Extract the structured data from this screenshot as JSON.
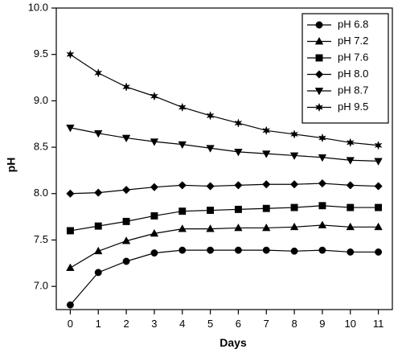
{
  "chart_data": {
    "type": "line",
    "xlabel": "Days",
    "ylabel": "pH",
    "x": [
      0,
      1,
      2,
      3,
      4,
      5,
      6,
      7,
      8,
      9,
      10,
      11
    ],
    "xlim": [
      -0.5,
      11.5
    ],
    "ylim": [
      6.75,
      10.0
    ],
    "x_ticks": [
      "0",
      "1",
      "2",
      "3",
      "4",
      "5",
      "6",
      "7",
      "8",
      "9",
      "10",
      "11"
    ],
    "y_ticks": [
      "7.0",
      "7.5",
      "8.0",
      "8.5",
      "9.0",
      "9.5",
      "10.0"
    ],
    "y_tick_values": [
      7.0,
      7.5,
      8.0,
      8.5,
      9.0,
      9.5,
      10.0
    ],
    "grid": false,
    "legend_position": "top-right",
    "series": [
      {
        "name": "pH 6.8",
        "marker": "circle",
        "values": [
          6.8,
          7.15,
          7.27,
          7.36,
          7.39,
          7.39,
          7.39,
          7.39,
          7.38,
          7.39,
          7.37,
          7.37
        ]
      },
      {
        "name": "pH 7.2",
        "marker": "triangle-up",
        "values": [
          7.2,
          7.38,
          7.49,
          7.57,
          7.62,
          7.62,
          7.63,
          7.63,
          7.64,
          7.66,
          7.64,
          7.64
        ]
      },
      {
        "name": "pH 7.6",
        "marker": "square",
        "values": [
          7.6,
          7.65,
          7.7,
          7.76,
          7.81,
          7.82,
          7.83,
          7.84,
          7.85,
          7.87,
          7.85,
          7.85
        ]
      },
      {
        "name": "pH 8.0",
        "marker": "diamond",
        "values": [
          8.0,
          8.01,
          8.04,
          8.07,
          8.09,
          8.08,
          8.09,
          8.1,
          8.1,
          8.11,
          8.09,
          8.08
        ]
      },
      {
        "name": "pH 8.7",
        "marker": "triangle-down",
        "values": [
          8.71,
          8.65,
          8.6,
          8.56,
          8.53,
          8.49,
          8.45,
          8.43,
          8.41,
          8.39,
          8.36,
          8.35
        ]
      },
      {
        "name": "pH 9.5",
        "marker": "star",
        "values": [
          9.5,
          9.3,
          9.15,
          9.05,
          8.93,
          8.84,
          8.76,
          8.68,
          8.64,
          8.6,
          8.55,
          8.52
        ]
      }
    ]
  }
}
